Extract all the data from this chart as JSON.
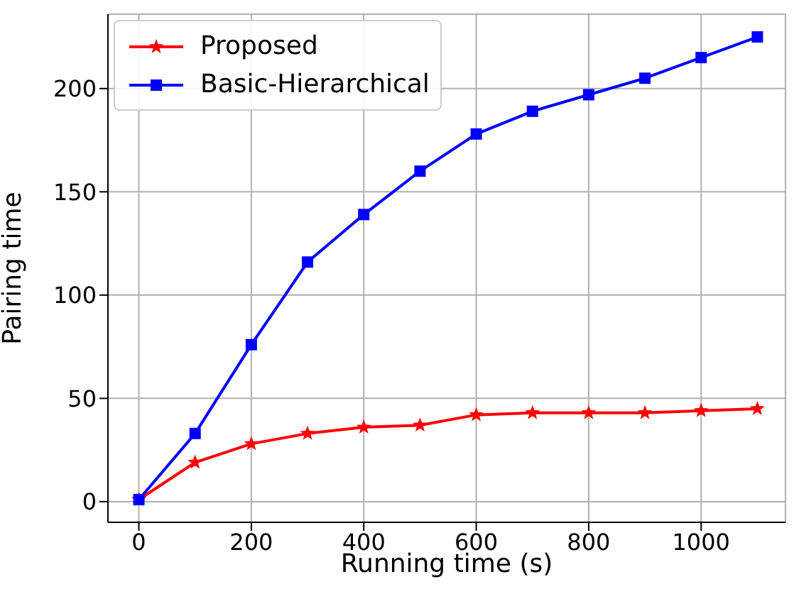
{
  "chart_data": {
    "type": "line",
    "xlabel": "Running time (s)",
    "ylabel": "Pairing time",
    "x": [
      0,
      100,
      200,
      300,
      400,
      500,
      600,
      700,
      800,
      900,
      1000,
      1100
    ],
    "series": [
      {
        "name": "Proposed",
        "color": "#ff0000",
        "marker": "star",
        "values": [
          1,
          19,
          28,
          33,
          36,
          37,
          42,
          43,
          43,
          43,
          44,
          45
        ]
      },
      {
        "name": "Basic-Hierarchical",
        "color": "#0000ff",
        "marker": "square",
        "values": [
          1,
          33,
          76,
          116,
          139,
          160,
          178,
          189,
          197,
          205,
          215,
          225
        ]
      }
    ],
    "xlim": [
      -55,
      1150
    ],
    "xticks": [
      0,
      200,
      400,
      600,
      800,
      1000
    ],
    "ylim": [
      -10,
      236
    ],
    "yticks": [
      0,
      50,
      100,
      150,
      200
    ],
    "grid": true,
    "legend": "top left",
    "line_style": "solid"
  }
}
